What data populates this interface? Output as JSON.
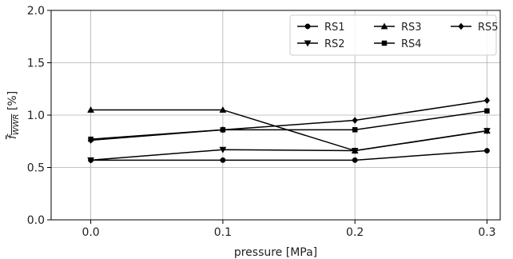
{
  "chart_data": {
    "type": "line",
    "xlabel": "pressure [MPa]",
    "ylabel_main": "f",
    "ylabel_sub": "WWR",
    "ylabel_unit": " [%]",
    "x": [
      0.0,
      0.1,
      0.2,
      0.3
    ],
    "xticks": [
      "0.0",
      "0.1",
      "0.2",
      "0.3"
    ],
    "yticks": [
      "0.0",
      "0.5",
      "1.0",
      "1.5",
      "2.0"
    ],
    "xlim": [
      -0.03,
      0.31
    ],
    "ylim": [
      0,
      2.0
    ],
    "grid": true,
    "legend_position": "top-right",
    "line_color": "#000000",
    "series": [
      {
        "name": "RS1",
        "marker": "circle",
        "values": [
          0.57,
          0.57,
          0.57,
          0.66
        ]
      },
      {
        "name": "RS2",
        "marker": "triangle-down",
        "values": [
          0.57,
          0.67,
          0.66,
          0.85
        ]
      },
      {
        "name": "RS3",
        "marker": "triangle-up",
        "values": [
          1.05,
          1.05,
          0.66,
          0.85
        ]
      },
      {
        "name": "RS4",
        "marker": "square",
        "values": [
          0.77,
          0.86,
          0.86,
          1.04
        ]
      },
      {
        "name": "RS5",
        "marker": "diamond",
        "values": [
          0.76,
          0.86,
          0.95,
          1.14
        ]
      }
    ]
  }
}
